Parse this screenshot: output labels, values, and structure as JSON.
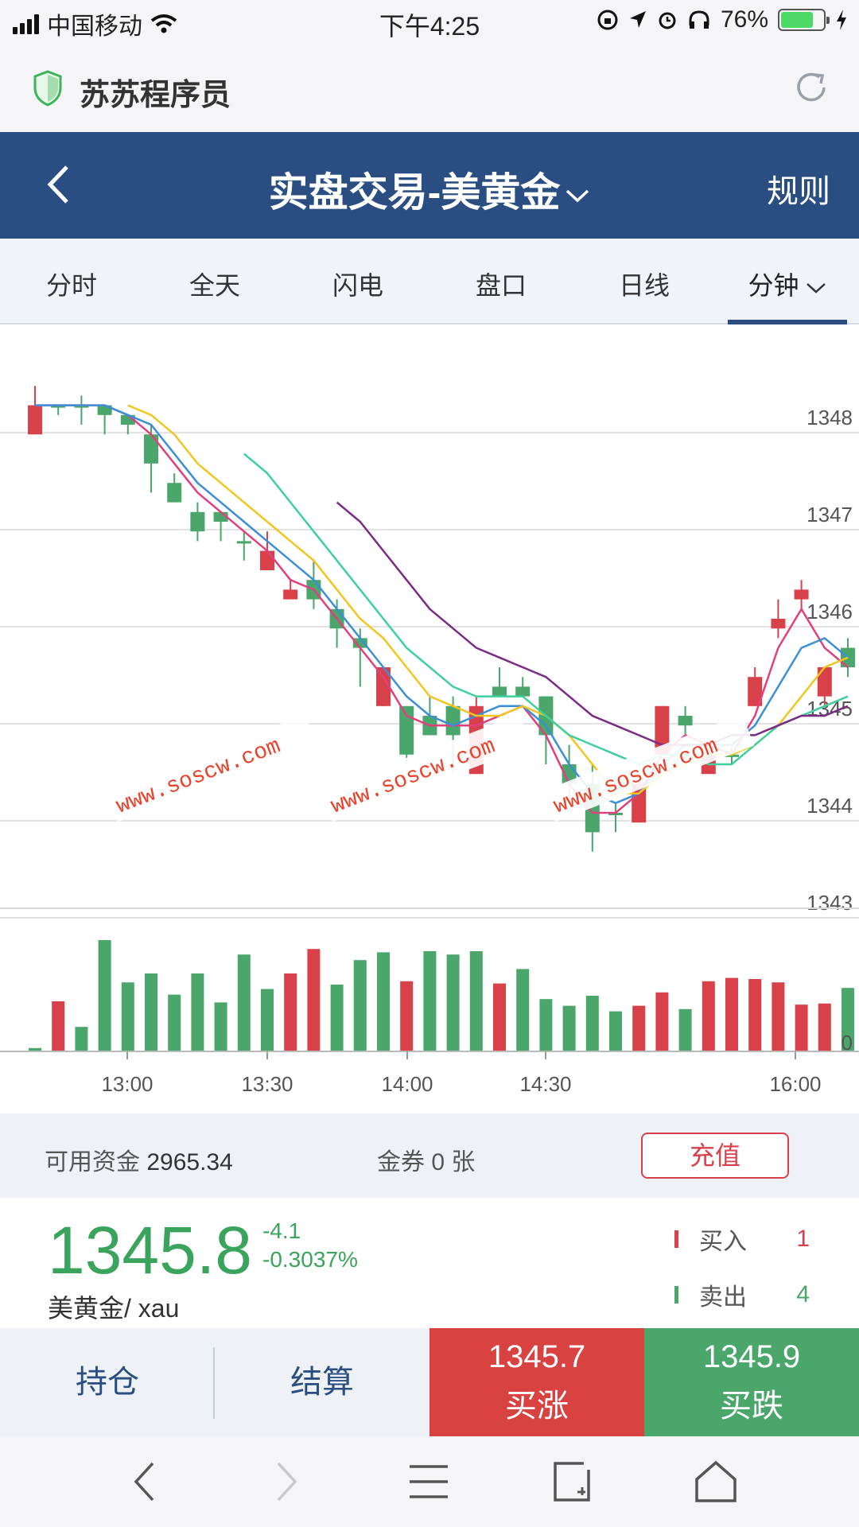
{
  "status": {
    "carrier": "中国移动",
    "time": "下午4:25",
    "battery": "76%"
  },
  "browser": {
    "site_name": "苏苏程序员"
  },
  "header": {
    "title": "实盘交易-美黄金",
    "rules": "规则"
  },
  "tabs": [
    "分时",
    "全天",
    "闪电",
    "盘口",
    "日线",
    "分钟"
  ],
  "chart": {
    "y_ticks": [
      "1348",
      "1347",
      "1346",
      "1345",
      "1344",
      "1343"
    ],
    "x_ticks": [
      "13:00",
      "13:30",
      "14:00",
      "14:30",
      "16:00"
    ],
    "volume_zero": "0",
    "watermark": "www.soscw.com"
  },
  "chart_data": {
    "type": "candlestick",
    "ylim": [
      1342.9,
      1348.7
    ],
    "candles": [
      {
        "o": 1347.9,
        "h": 1348.4,
        "l": 1347.9,
        "c": 1348.2,
        "dir": "up"
      },
      {
        "o": 1348.2,
        "h": 1348.2,
        "l": 1348.1,
        "c": 1348.2,
        "dir": "down"
      },
      {
        "o": 1348.2,
        "h": 1348.3,
        "l": 1348.0,
        "c": 1348.2,
        "dir": "down"
      },
      {
        "o": 1348.2,
        "h": 1348.2,
        "l": 1347.9,
        "c": 1348.1,
        "dir": "down"
      },
      {
        "o": 1348.1,
        "h": 1348.1,
        "l": 1347.9,
        "c": 1348.0,
        "dir": "down"
      },
      {
        "o": 1347.9,
        "h": 1348.0,
        "l": 1347.3,
        "c": 1347.6,
        "dir": "down"
      },
      {
        "o": 1347.4,
        "h": 1347.5,
        "l": 1347.2,
        "c": 1347.2,
        "dir": "down"
      },
      {
        "o": 1347.1,
        "h": 1347.2,
        "l": 1346.8,
        "c": 1346.9,
        "dir": "down"
      },
      {
        "o": 1347.1,
        "h": 1347.1,
        "l": 1346.8,
        "c": 1347.0,
        "dir": "down"
      },
      {
        "o": 1346.8,
        "h": 1346.9,
        "l": 1346.6,
        "c": 1346.8,
        "dir": "down"
      },
      {
        "o": 1346.5,
        "h": 1346.9,
        "l": 1346.5,
        "c": 1346.7,
        "dir": "up"
      },
      {
        "o": 1346.2,
        "h": 1346.4,
        "l": 1346.2,
        "c": 1346.3,
        "dir": "up"
      },
      {
        "o": 1346.4,
        "h": 1346.6,
        "l": 1346.1,
        "c": 1346.2,
        "dir": "down"
      },
      {
        "o": 1346.1,
        "h": 1346.2,
        "l": 1345.7,
        "c": 1345.9,
        "dir": "down"
      },
      {
        "o": 1345.8,
        "h": 1345.9,
        "l": 1345.3,
        "c": 1345.7,
        "dir": "down"
      },
      {
        "o": 1345.1,
        "h": 1345.5,
        "l": 1345.1,
        "c": 1345.5,
        "dir": "up"
      },
      {
        "o": 1345.1,
        "h": 1345.1,
        "l": 1344.5,
        "c": 1344.6,
        "dir": "down"
      },
      {
        "o": 1344.8,
        "h": 1345.2,
        "l": 1344.8,
        "c": 1345.0,
        "dir": "down"
      },
      {
        "o": 1345.1,
        "h": 1345.2,
        "l": 1344.4,
        "c": 1344.8,
        "dir": "down"
      },
      {
        "o": 1344.4,
        "h": 1345.2,
        "l": 1344.4,
        "c": 1345.1,
        "dir": "up"
      },
      {
        "o": 1345.3,
        "h": 1345.5,
        "l": 1345.2,
        "c": 1345.2,
        "dir": "down"
      },
      {
        "o": 1345.3,
        "h": 1345.4,
        "l": 1345.2,
        "c": 1345.2,
        "dir": "down"
      },
      {
        "o": 1345.2,
        "h": 1345.2,
        "l": 1344.5,
        "c": 1344.8,
        "dir": "down"
      },
      {
        "o": 1344.5,
        "h": 1344.7,
        "l": 1344.1,
        "c": 1344.3,
        "dir": "down"
      },
      {
        "o": 1344.3,
        "h": 1344.5,
        "l": 1343.6,
        "c": 1343.8,
        "dir": "down"
      },
      {
        "o": 1344.0,
        "h": 1344.1,
        "l": 1343.8,
        "c": 1344.0,
        "dir": "down"
      },
      {
        "o": 1343.9,
        "h": 1344.4,
        "l": 1343.9,
        "c": 1344.3,
        "dir": "up"
      },
      {
        "o": 1344.6,
        "h": 1345.1,
        "l": 1344.6,
        "c": 1345.1,
        "dir": "up"
      },
      {
        "o": 1345.0,
        "h": 1345.1,
        "l": 1344.8,
        "c": 1344.9,
        "dir": "down"
      },
      {
        "o": 1344.4,
        "h": 1344.6,
        "l": 1344.4,
        "c": 1344.6,
        "dir": "up"
      },
      {
        "o": 1344.6,
        "h": 1344.7,
        "l": 1344.5,
        "c": 1344.6,
        "dir": "down"
      },
      {
        "o": 1345.1,
        "h": 1345.5,
        "l": 1345.1,
        "c": 1345.4,
        "dir": "up"
      },
      {
        "o": 1345.9,
        "h": 1346.2,
        "l": 1345.8,
        "c": 1346.0,
        "dir": "up"
      },
      {
        "o": 1346.2,
        "h": 1346.4,
        "l": 1346.1,
        "c": 1346.3,
        "dir": "up"
      },
      {
        "o": 1345.2,
        "h": 1345.5,
        "l": 1345.1,
        "c": 1345.5,
        "dir": "up"
      },
      {
        "o": 1345.5,
        "h": 1345.8,
        "l": 1345.4,
        "c": 1345.7,
        "dir": "down"
      }
    ],
    "volumes": [
      0.03,
      0.45,
      0.22,
      1.0,
      0.62,
      0.7,
      0.51,
      0.7,
      0.44,
      0.87,
      0.56,
      0.7,
      0.92,
      0.6,
      0.82,
      0.89,
      0.63,
      0.9,
      0.87,
      0.9,
      0.61,
      0.74,
      0.47,
      0.41,
      0.5,
      0.36,
      0.41,
      0.53,
      0.38,
      0.63,
      0.66,
      0.65,
      0.62,
      0.42,
      0.43,
      0.57
    ],
    "volume_colors": [
      "green",
      "red",
      "green",
      "green",
      "green",
      "green",
      "green",
      "green",
      "green",
      "green",
      "green",
      "red",
      "red",
      "green",
      "green",
      "green",
      "red",
      "green",
      "green",
      "green",
      "red",
      "green",
      "green",
      "green",
      "green",
      "green",
      "red",
      "red",
      "green",
      "red",
      "red",
      "red",
      "red",
      "red",
      "red",
      "green"
    ],
    "ma_lines": [
      {
        "color": "#e0407c",
        "values": [
          1348.2,
          1348.2,
          1348.2,
          1348.2,
          1348.1,
          1347.9,
          1347.6,
          1347.3,
          1347.1,
          1346.9,
          1346.7,
          1346.4,
          1346.3,
          1346.0,
          1345.7,
          1345.4,
          1345.0,
          1344.9,
          1344.9,
          1344.9,
          1345.0,
          1345.1,
          1344.8,
          1344.3,
          1344.0,
          1344.0,
          1344.2,
          1344.6,
          1344.8,
          1344.7,
          1344.6,
          1345.0,
          1345.7,
          1346.1,
          1345.7,
          1345.5
        ]
      },
      {
        "color": "#3b8fd6",
        "values": [
          1348.2,
          1348.2,
          1348.2,
          1348.2,
          1348.1,
          1348.0,
          1347.7,
          1347.4,
          1347.2,
          1347.0,
          1346.8,
          1346.6,
          1346.4,
          1346.1,
          1345.8,
          1345.5,
          1345.2,
          1345.0,
          1344.9,
          1345.0,
          1345.1,
          1345.1,
          1344.9,
          1344.5,
          1344.2,
          1344.1,
          1344.2,
          1344.5,
          1344.7,
          1344.7,
          1344.7,
          1344.9,
          1345.3,
          1345.7,
          1345.8,
          1345.6
        ]
      },
      {
        "color": "#f2c521",
        "values": [
          null,
          null,
          null,
          null,
          1348.2,
          1348.1,
          1347.9,
          1347.6,
          1347.4,
          1347.2,
          1347.0,
          1346.8,
          1346.6,
          1346.3,
          1346.0,
          1345.8,
          1345.5,
          1345.2,
          1345.1,
          1345.0,
          1345.0,
          1345.1,
          1345.0,
          1344.8,
          1344.5,
          1344.2,
          1344.2,
          1344.4,
          1344.5,
          1344.6,
          1344.6,
          1344.7,
          1344.9,
          1345.2,
          1345.5,
          1345.6
        ]
      },
      {
        "color": "#3fcf9a",
        "values": [
          null,
          null,
          null,
          null,
          null,
          null,
          null,
          null,
          null,
          1347.7,
          1347.5,
          1347.2,
          1346.9,
          1346.6,
          1346.3,
          1346.0,
          1345.7,
          1345.5,
          1345.3,
          1345.2,
          1345.2,
          1345.2,
          1345.0,
          1344.8,
          1344.7,
          1344.6,
          1344.5,
          1344.6,
          1344.6,
          1344.5,
          1344.5,
          1344.7,
          1344.9,
          1345.0,
          1345.1,
          1345.2
        ]
      },
      {
        "color": "#7b2a85",
        "values": [
          null,
          null,
          null,
          null,
          null,
          null,
          null,
          null,
          null,
          null,
          null,
          null,
          null,
          1347.2,
          1347.0,
          1346.7,
          1346.4,
          1346.1,
          1345.9,
          1345.7,
          1345.6,
          1345.5,
          1345.4,
          1345.2,
          1345.0,
          1344.9,
          1344.8,
          1344.7,
          1344.7,
          1344.7,
          1344.8,
          1344.8,
          1344.9,
          1345.0,
          1345.0,
          1345.1
        ]
      }
    ]
  },
  "account": {
    "funds_label": "可用资金",
    "funds_value": "2965.34",
    "coupon": "金券 0 张",
    "recharge": "充值"
  },
  "quote": {
    "price": "1345.8",
    "change": "-4.1",
    "change_pct": "-0.3037%",
    "instrument": "美黄金/ xau",
    "buy_label": "买入",
    "buy_count": "1",
    "sell_label": "卖出",
    "sell_count": "4"
  },
  "actions": {
    "hold": "持仓",
    "settle": "结算",
    "buy_up_price": "1345.7",
    "buy_up": "买涨",
    "buy_down_price": "1345.9",
    "buy_down": "买跌"
  },
  "colors": {
    "up": "#d8404a",
    "down": "#4aa66a",
    "header": "#2a4e82"
  }
}
